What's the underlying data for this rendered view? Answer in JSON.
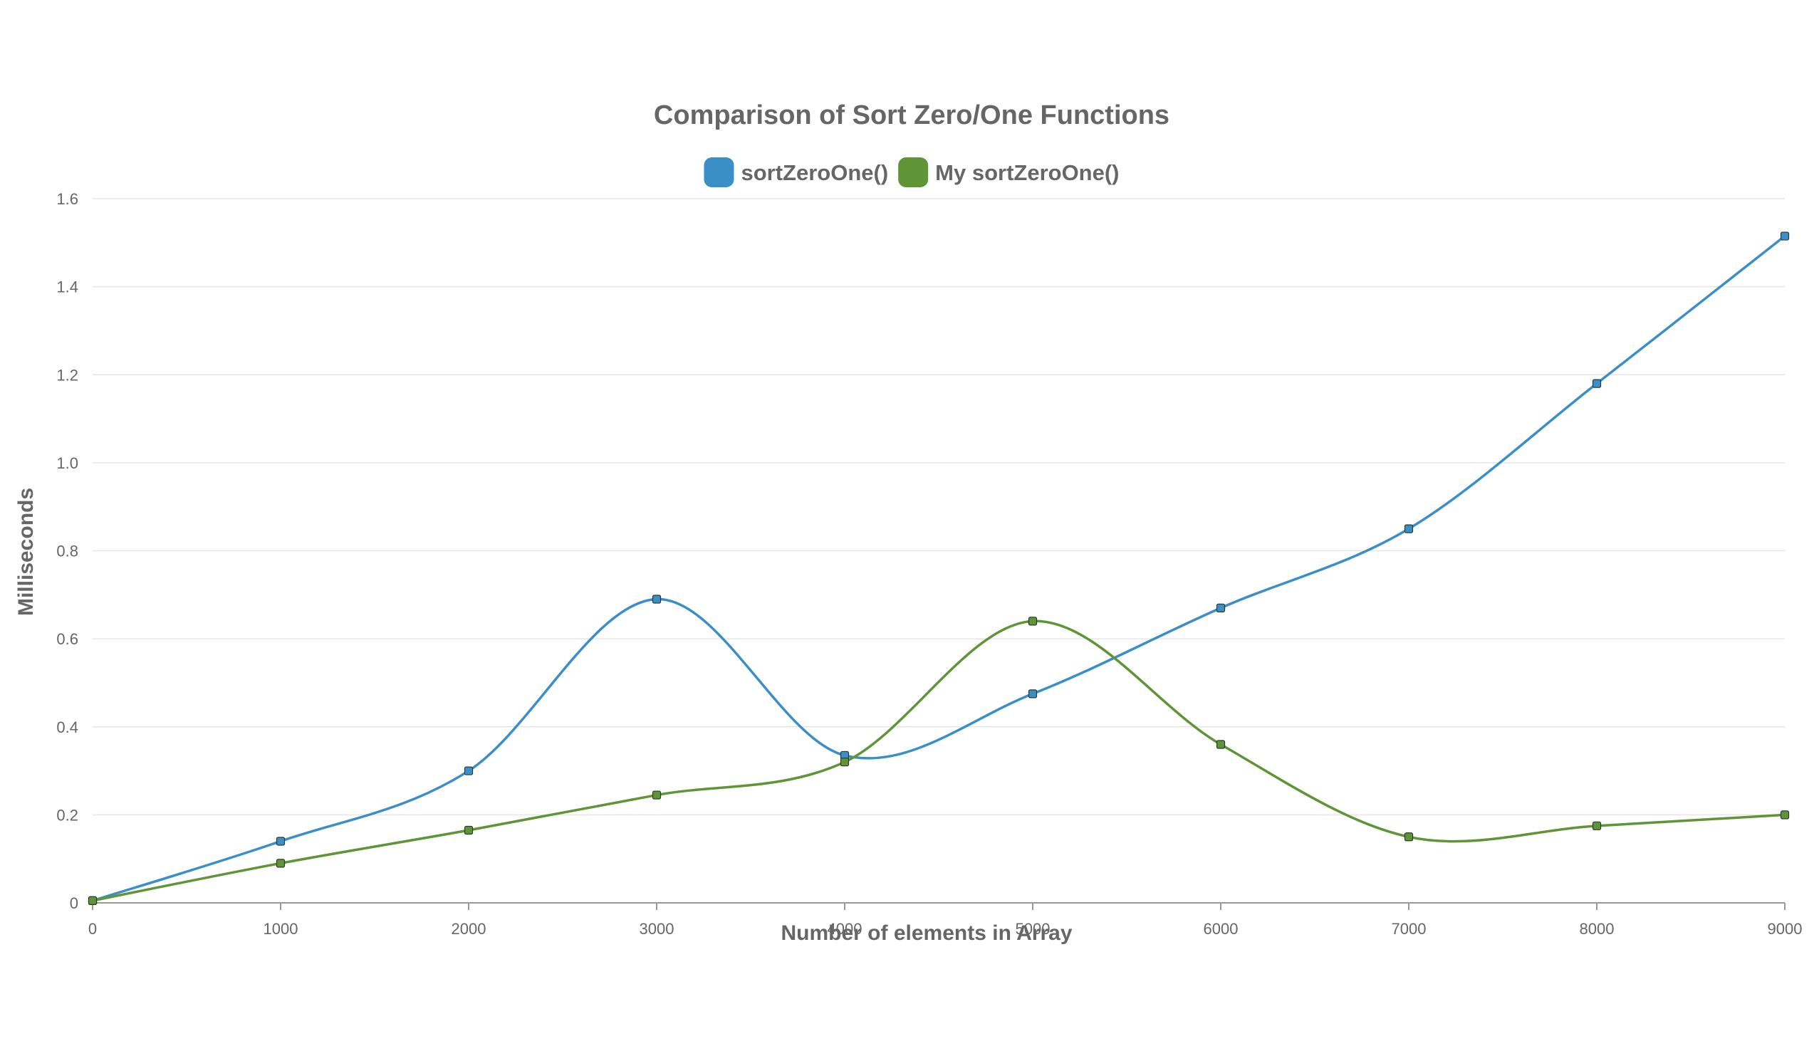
{
  "chart_data": {
    "type": "line",
    "title": "Comparison of Sort Zero/One Functions",
    "xlabel": "Number of elements in Array",
    "ylabel": "Milliseconds",
    "x": [
      0,
      1000,
      2000,
      3000,
      4000,
      5000,
      6000,
      7000,
      8000,
      9000
    ],
    "x_tick_labels": [
      "0",
      "1000",
      "2000",
      "3000",
      "4000",
      "5000",
      "6000",
      "7000",
      "8000",
      "9000"
    ],
    "y_tick_values": [
      0,
      0.2,
      0.4,
      0.6,
      0.8,
      1.0,
      1.2,
      1.4,
      1.6
    ],
    "y_tick_labels": [
      "0",
      "0.2",
      "0.4",
      "0.6",
      "0.8",
      "1.0",
      "1.2",
      "1.4",
      "1.6"
    ],
    "xlim": [
      0,
      9000
    ],
    "ylim": [
      0,
      1.6
    ],
    "grid": true,
    "legend_position": "top-center",
    "smooth": true,
    "series": [
      {
        "name": "sortZeroOne()",
        "color": "#3a8fc8",
        "values": [
          0.005,
          0.14,
          0.3,
          0.69,
          0.335,
          0.475,
          0.67,
          0.85,
          1.18,
          1.515
        ]
      },
      {
        "name": "My sortZeroOne()",
        "color": "#5f9536",
        "values": [
          0.005,
          0.09,
          0.165,
          0.245,
          0.32,
          0.64,
          0.36,
          0.15,
          0.175,
          0.2
        ]
      }
    ]
  }
}
